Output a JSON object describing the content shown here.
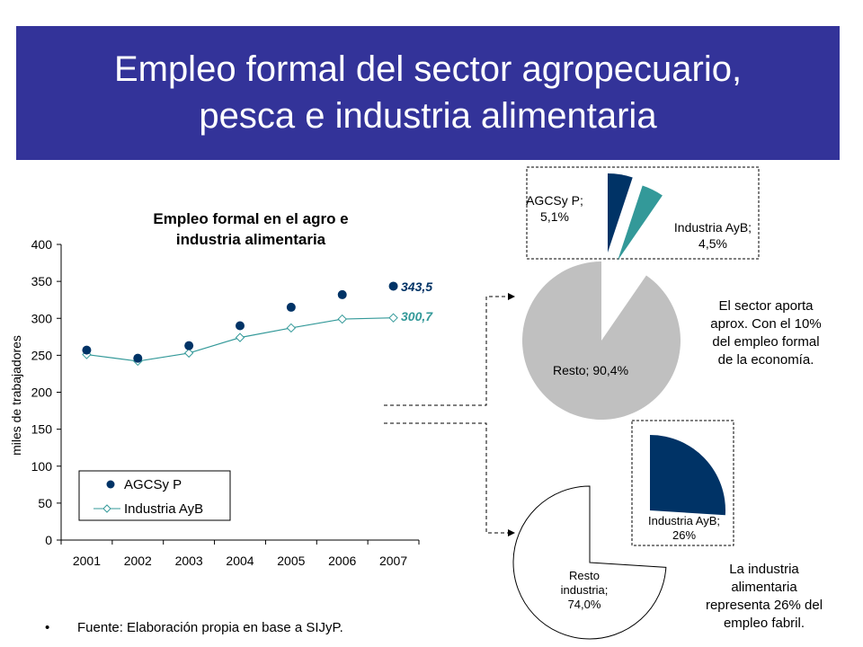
{
  "header": {
    "title_line1": "Empleo formal del sector agropecuario,",
    "title_line2": "pesca e industria alimentaria"
  },
  "colors": {
    "header_bg": "#333399",
    "agcsyp": "#003366",
    "industria": "#339999",
    "resto": "#c0c0c0"
  },
  "chart_data": [
    {
      "type": "line",
      "title_line1": "Empleo formal en el agro e",
      "title_line2": "industria alimentaria",
      "ylabel": "miles de trabajadores",
      "xlabel": "",
      "ylim": [
        0,
        400
      ],
      "yticks": [
        "0",
        "50",
        "100",
        "150",
        "200",
        "250",
        "300",
        "350",
        "400"
      ],
      "categories": [
        "2001",
        "2002",
        "2003",
        "2004",
        "2005",
        "2006",
        "2007"
      ],
      "series": [
        {
          "name": "AGCSy P",
          "marker": "circle",
          "line": false,
          "values": [
            257,
            246,
            263,
            290,
            315,
            332,
            343.5
          ],
          "end_label": "343,5"
        },
        {
          "name": "Industria AyB",
          "marker": "diamond",
          "line": true,
          "values": [
            251,
            242,
            253,
            274,
            287,
            299,
            300.7
          ],
          "end_label": "300,7"
        }
      ],
      "legend": "bottom-left",
      "grid": false
    },
    {
      "type": "pie",
      "slices": [
        {
          "label": "AGCSy P;",
          "value_label": "5,1%",
          "value": 5.1
        },
        {
          "label": "Industria AyB;",
          "value_label": "4,5%",
          "value": 4.5
        },
        {
          "label": "Resto;",
          "value_label": "90,4%",
          "value": 90.4
        }
      ]
    },
    {
      "type": "pie",
      "slices": [
        {
          "label": "Industria AyB;",
          "value_label": "26%",
          "value": 26
        },
        {
          "label": "Resto industria;",
          "label_line1": "Resto",
          "label_line2": "industria;",
          "value_label": "74,0%",
          "value": 74
        }
      ]
    }
  ],
  "notes": {
    "economy": [
      "El sector aporta",
      "aprox. Con el 10%",
      "del empleo formal",
      "de la economía."
    ],
    "factory": [
      "La industria",
      "alimentaria",
      "representa 26% del",
      "empleo fabril."
    ]
  },
  "source": "Fuente: Elaboración propia en base a SIJyP."
}
